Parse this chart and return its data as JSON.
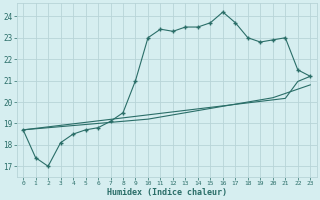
{
  "xlabel": "Humidex (Indice chaleur)",
  "ylabel": "",
  "bg_color": "#d6eef0",
  "grid_color": "#b8d4d8",
  "line_color": "#2a6e68",
  "xlim": [
    -0.5,
    23.5
  ],
  "ylim": [
    16.5,
    24.6
  ],
  "yticks": [
    17,
    18,
    19,
    20,
    21,
    22,
    23,
    24
  ],
  "xticks": [
    0,
    1,
    2,
    3,
    4,
    5,
    6,
    7,
    8,
    9,
    10,
    11,
    12,
    13,
    14,
    15,
    16,
    17,
    18,
    19,
    20,
    21,
    22,
    23
  ],
  "curve1_x": [
    0,
    1,
    2,
    3,
    4,
    5,
    6,
    7,
    8,
    9,
    10,
    11,
    12,
    13,
    14,
    15,
    16,
    17,
    18,
    19,
    20,
    21,
    22,
    23
  ],
  "curve1_y": [
    18.7,
    17.4,
    17.0,
    18.1,
    18.5,
    18.7,
    18.8,
    19.1,
    19.5,
    21.0,
    23.0,
    23.4,
    23.3,
    23.5,
    23.5,
    23.7,
    24.2,
    23.7,
    23.0,
    22.8,
    22.9,
    23.0,
    21.5,
    21.2
  ],
  "curve2_x": [
    0,
    1,
    2,
    3,
    4,
    5,
    6,
    7,
    8,
    9,
    10,
    11,
    12,
    13,
    14,
    15,
    16,
    17,
    18,
    19,
    20,
    21,
    22,
    23
  ],
  "curve2_y": [
    18.7,
    18.77,
    18.84,
    18.91,
    18.98,
    19.05,
    19.12,
    19.19,
    19.26,
    19.33,
    19.4,
    19.47,
    19.54,
    19.61,
    19.68,
    19.75,
    19.82,
    19.89,
    19.96,
    20.03,
    20.1,
    20.17,
    20.96,
    21.2
  ],
  "curve3_x": [
    0,
    1,
    2,
    3,
    4,
    5,
    6,
    7,
    8,
    9,
    10,
    11,
    12,
    13,
    14,
    15,
    16,
    17,
    18,
    19,
    20,
    21,
    22,
    23
  ],
  "curve3_y": [
    18.7,
    18.75,
    18.8,
    18.85,
    18.9,
    18.95,
    19.0,
    19.05,
    19.1,
    19.15,
    19.2,
    19.3,
    19.4,
    19.5,
    19.6,
    19.7,
    19.8,
    19.9,
    20.0,
    20.1,
    20.2,
    20.4,
    20.6,
    20.8
  ]
}
